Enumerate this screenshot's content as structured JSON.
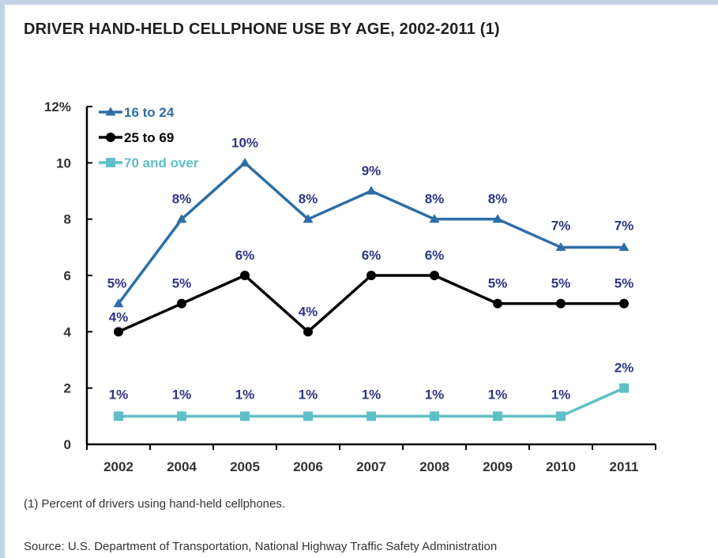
{
  "title": "DRIVER HAND-HELD CELLPHONE USE BY AGE, 2002-2011 (1)",
  "footnote": "(1) Percent of drivers using hand-held cellphones.",
  "source": "Source: U.S. Department of Transportation, National Highway Traffic Safety Administration",
  "chart_data": {
    "type": "line",
    "title": "DRIVER HAND-HELD CELLPHONE USE BY AGE, 2002-2011 (1)",
    "xlabel": "",
    "ylabel": "",
    "categories": [
      "2002",
      "2004",
      "2005",
      "2006",
      "2007",
      "2008",
      "2009",
      "2010",
      "2011"
    ],
    "ylim": [
      0,
      12
    ],
    "yticks": [
      {
        "value": 12,
        "label": "12%"
      },
      {
        "value": 10,
        "label": "10"
      },
      {
        "value": 8,
        "label": "8"
      },
      {
        "value": 6,
        "label": "6"
      },
      {
        "value": 4,
        "label": "4"
      },
      {
        "value": 2,
        "label": "2"
      },
      {
        "value": 0,
        "label": "0"
      }
    ],
    "grid": false,
    "legend_position": "top-left",
    "series": [
      {
        "name": "16 to 24",
        "color": "#2e6ea6",
        "label_color": "#2e3585",
        "marker": "triangle",
        "values": [
          5,
          8,
          10,
          8,
          9,
          8,
          8,
          7,
          7
        ],
        "labels": [
          "5%",
          "8%",
          "10%",
          "8%",
          "9%",
          "8%",
          "8%",
          "7%",
          "7%"
        ]
      },
      {
        "name": "25 to 69",
        "color": "#000000",
        "label_color": "#2e3585",
        "marker": "circle",
        "values": [
          4,
          5,
          6,
          4,
          6,
          6,
          5,
          5,
          5
        ],
        "labels": [
          "4%",
          "5%",
          "6%",
          "4%",
          "6%",
          "6%",
          "5%",
          "5%",
          "5%"
        ]
      },
      {
        "name": "70 and over",
        "color": "#5fbfc6",
        "label_color": "#2e3585",
        "marker": "square",
        "values": [
          1,
          1,
          1,
          1,
          1,
          1,
          1,
          1,
          2
        ],
        "labels": [
          "1%",
          "1%",
          "1%",
          "1%",
          "1%",
          "1%",
          "1%",
          "1%",
          "2%"
        ]
      }
    ]
  }
}
